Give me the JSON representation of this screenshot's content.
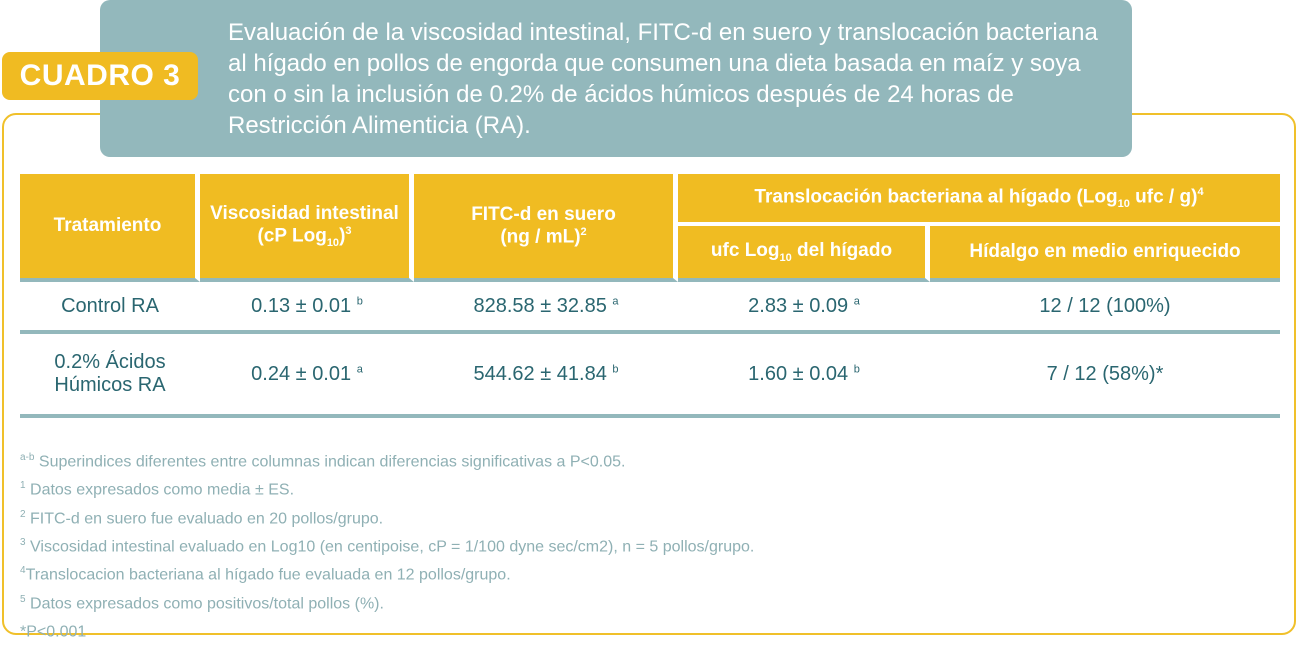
{
  "badge": "CUADRO 3",
  "title": "Evaluación de la viscosidad intestinal,  FITC-d en suero  y translocación bacteriana al hígado en pollos de engorda que consumen una dieta basada en maíz y soya con o sin la inclusión de 0.2% de ácidos húmicos después de 24 horas de Restricción Alimenticia (RA).",
  "table": {
    "h_tratamiento": "Tratamiento",
    "h_visc_a": "Viscosidad intestinal",
    "h_visc_b": "(cP Log",
    "h_visc_sub": "10",
    "h_visc_c": ")",
    "h_visc_sup": "3",
    "h_fitc_a": "FITC-d en suero",
    "h_fitc_b": "(ng / mL)",
    "h_fitc_sup": "2",
    "h_trans_a": "Translocación bacteriana al hígado (Log",
    "h_trans_sub": "10",
    "h_trans_b": " ufc / g)",
    "h_trans_sup": "4",
    "h_ufc_a": "ufc Log",
    "h_ufc_sub": "10",
    "h_ufc_b": " del hígado",
    "h_hidalgo": "Hídalgo en medio enriquecido",
    "rows": [
      {
        "tratamiento_a": "Control RA",
        "tratamiento_b": "",
        "visc": "0.13 ± 0.01",
        "visc_sup": "b",
        "fitc": "828.58 ± 32.85",
        "fitc_sup": "a",
        "ufc": "2.83 ± 0.09",
        "ufc_sup": "a",
        "hidalgo": "12 / 12 (100%)"
      },
      {
        "tratamiento_a": "0.2% Ácidos",
        "tratamiento_b": "Húmicos RA",
        "visc": "0.24 ± 0.01",
        "visc_sup": "a",
        "fitc": "544.62 ± 41.84",
        "fitc_sup": "b",
        "ufc": "1.60 ± 0.04",
        "ufc_sup": "b",
        "hidalgo": "7 / 12 (58%)*"
      }
    ]
  },
  "footnotes": [
    {
      "sup": "a-b",
      "text": " Superindices diferentes entre columnas indican diferencias significativas a P<0.05."
    },
    {
      "sup": "1",
      "text": " Datos expresados como media ± ES."
    },
    {
      "sup": "2",
      "text": " FITC-d en suero fue evaluado en 20 pollos/grupo."
    },
    {
      "sup": "3",
      "text": " Viscosidad intestinal evaluado en Log10 (en centipoise, cP = 1/100 dyne sec/cm2), n = 5 pollos/grupo."
    },
    {
      "sup": "4",
      "text": "Translocacion bacteriana al hígado fue evaluada en 12 pollos/grupo."
    },
    {
      "sup": "5",
      "text": " Datos expresados como positivos/total pollos (%)."
    },
    {
      "sup": "",
      "text": "*P<0.001"
    }
  ],
  "colors": {
    "accent_yellow": "#f0bc22",
    "accent_teal": "#93b8bc",
    "text_teal": "#2a6670",
    "footnote_gray": "#8fb0b4"
  }
}
